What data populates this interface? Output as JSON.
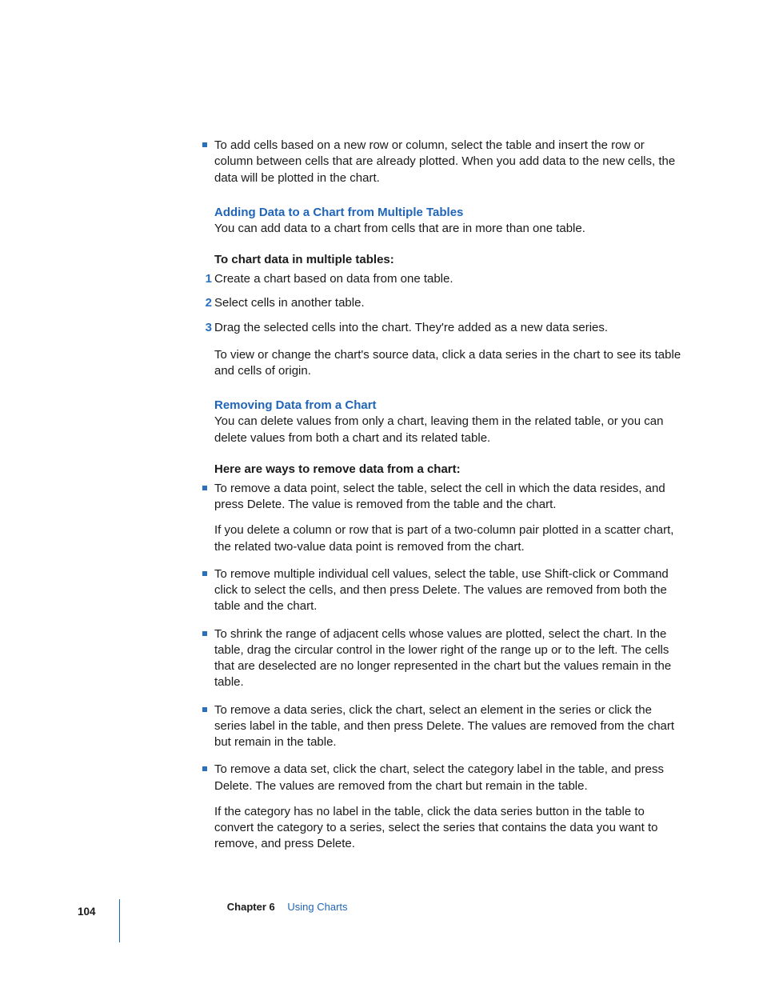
{
  "colors": {
    "accent_blue": "#2065b8",
    "bullet_blue": "#2b6fbf",
    "text": "#1a1a1a",
    "background": "#ffffff"
  },
  "top_bullet": "To add cells based on a new row or column, select the table and insert the row or column between cells that are already plotted. When you add data to the new cells, the data will be plotted in the chart.",
  "section1": {
    "heading": "Adding Data to a Chart from Multiple Tables",
    "intro": "You can add data to a chart from cells that are in more than one table.",
    "task_heading": "To chart data in multiple tables:",
    "steps": [
      "Create a chart based on data from one table.",
      "Select cells in another table.",
      "Drag the selected cells into the chart. They're added as a new data series."
    ],
    "after": "To view or change the chart's source data, click a data series in the chart to see its table and cells of origin."
  },
  "section2": {
    "heading": "Removing Data from a Chart",
    "intro": "You can delete values from only a chart, leaving them in the related table, or you can delete values from both a chart and its related table.",
    "task_heading": "Here are ways to remove data from a chart:",
    "bullets": [
      {
        "text": "To remove a data point, select the table, select the cell in which the data resides, and press Delete. The value is removed from the table and the chart.",
        "followup": "If you delete a column or row that is part of a two-column pair plotted in a scatter chart, the related two-value data point is removed from the chart."
      },
      {
        "text": "To remove multiple individual cell values, select the table, use Shift-click or Command click to select the cells, and then press Delete. The values are removed from both the table and the chart."
      },
      {
        "text": "To shrink the range of adjacent cells whose values are plotted, select the chart. In the table, drag the circular control in the lower right of the range up or to the left. The cells that are deselected are no longer represented in the chart but the values remain in the table."
      },
      {
        "text": "To remove a data series, click the chart, select an element in the series or click the series label in the table, and then press Delete. The values are removed from the chart but remain in the table."
      },
      {
        "text": "To remove a data set, click the chart, select the category label in the table, and press Delete. The values are removed from the chart but remain in the table.",
        "followup": "If the category has no label in the table, click the data series button in the table to convert the category to a series, select the series that contains the data you want to remove, and press Delete."
      }
    ]
  },
  "footer": {
    "page_number": "104",
    "chapter_label": "Chapter 6",
    "chapter_title": "Using Charts"
  }
}
